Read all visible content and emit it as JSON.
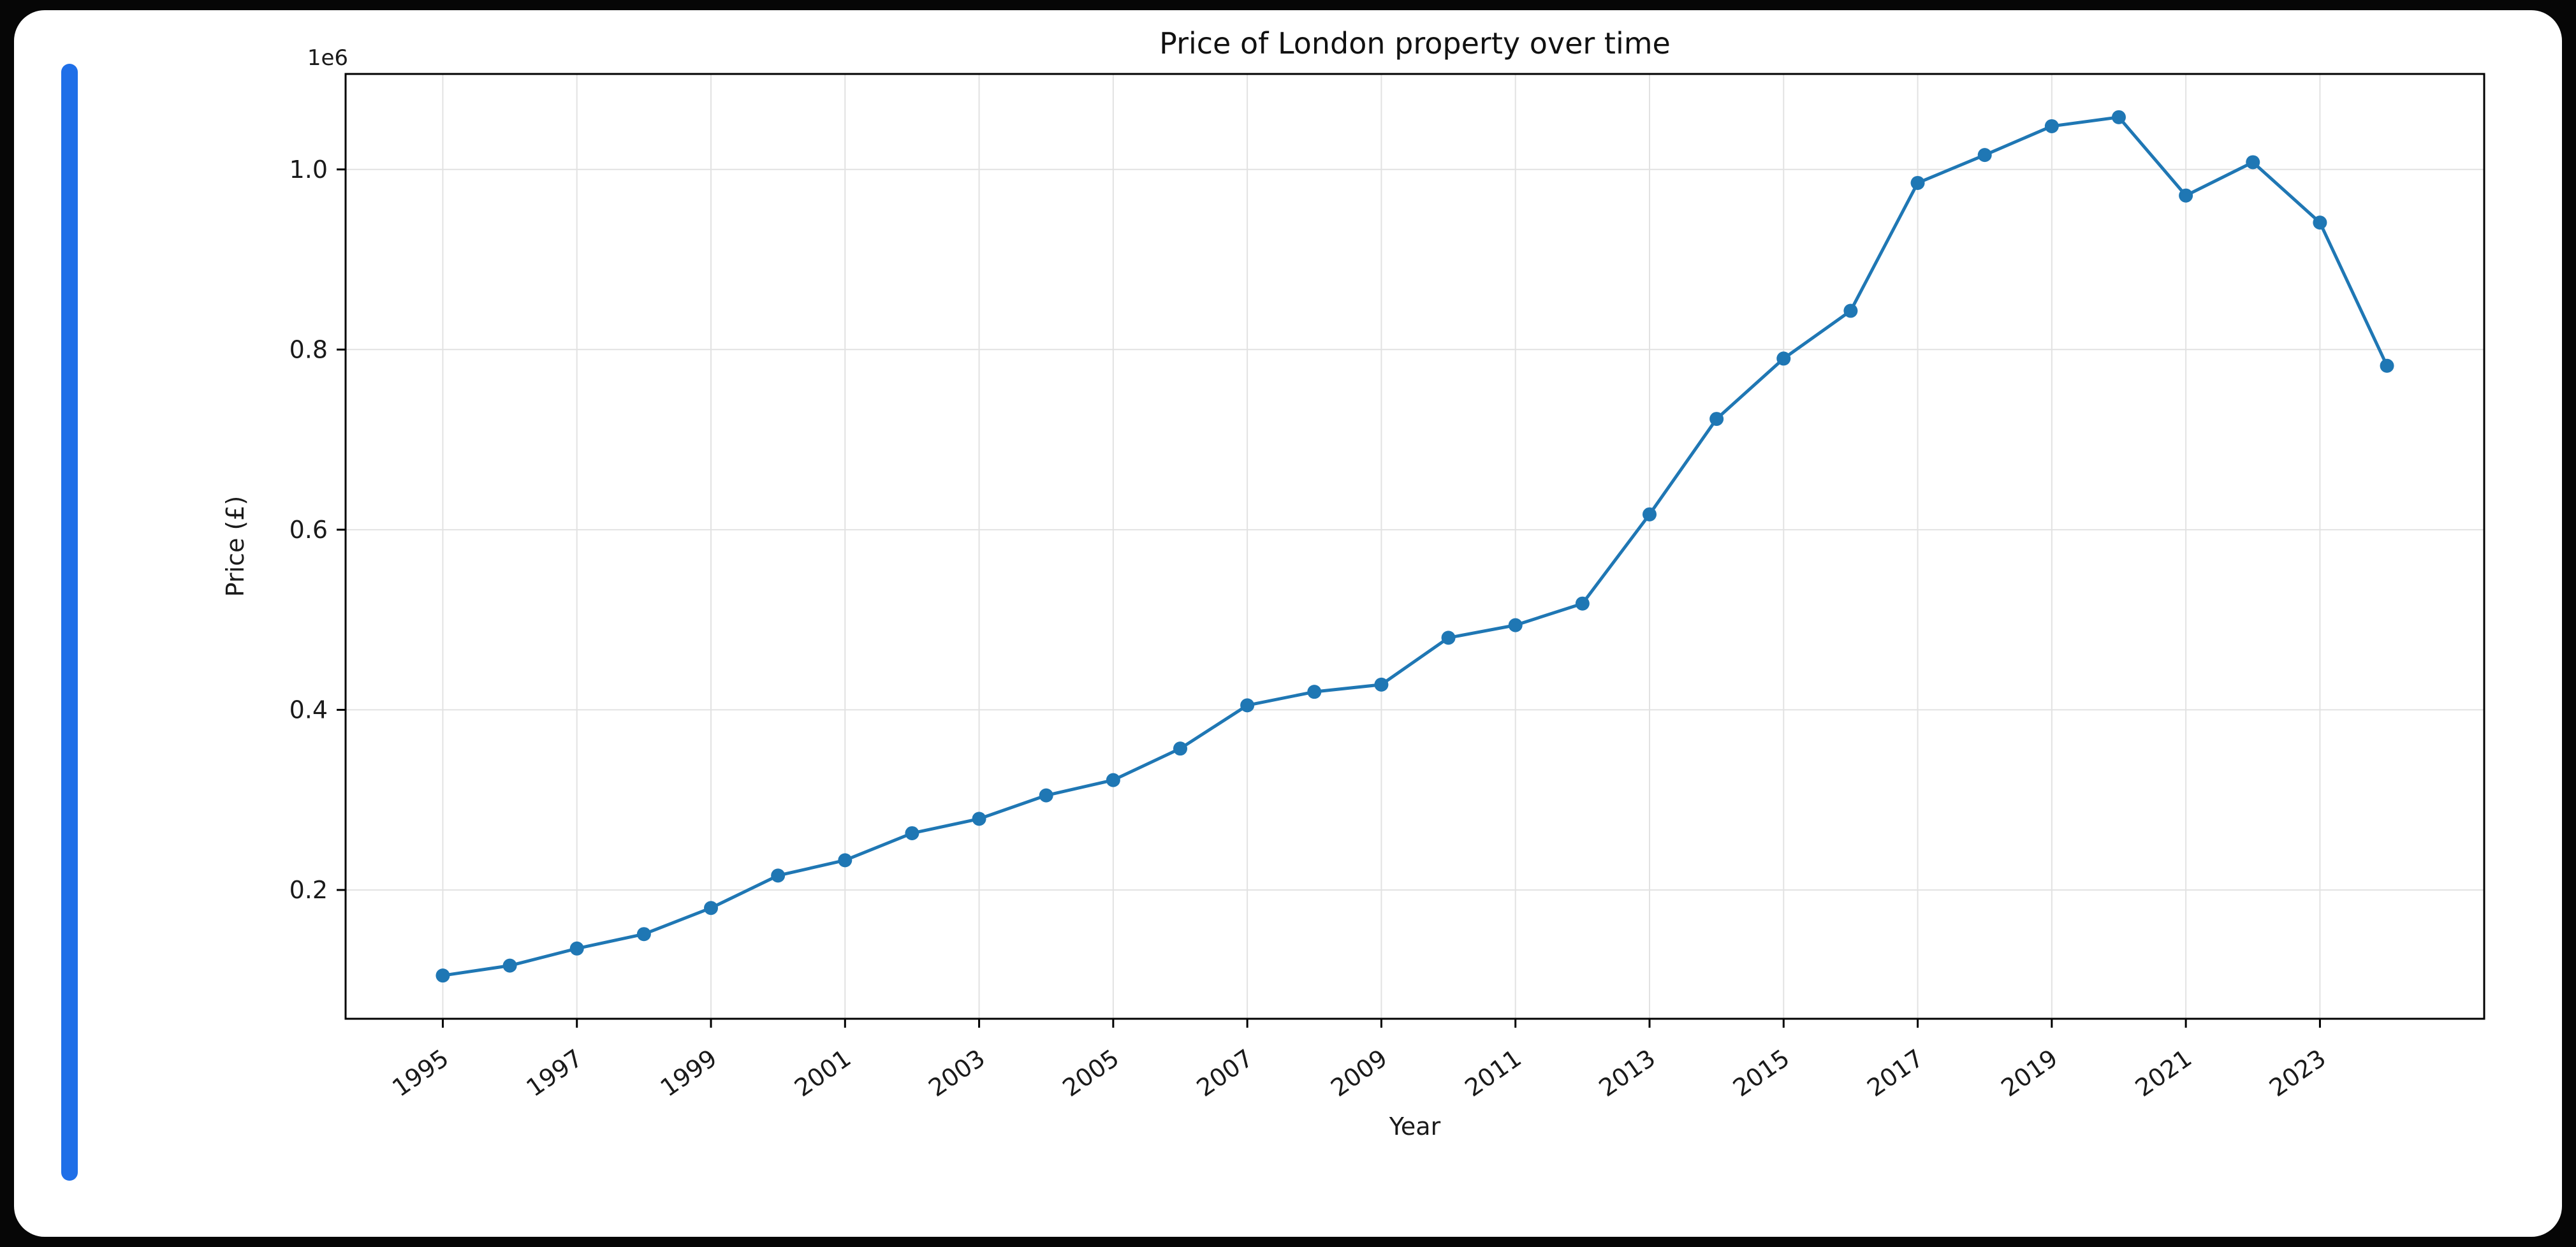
{
  "page": {
    "background_color": "#060606",
    "card_background_color": "#ffffff"
  },
  "accent_bar": {
    "color": "#1f6fe8"
  },
  "chart_data": {
    "type": "line",
    "title": "Price of London property over time",
    "xlabel": "Year",
    "ylabel": "Price (£)",
    "offset_text": "1e6",
    "x": [
      1995,
      1996,
      1997,
      1998,
      1999,
      2000,
      2001,
      2002,
      2003,
      2004,
      2005,
      2006,
      2007,
      2008,
      2009,
      2010,
      2011,
      2012,
      2013,
      2014,
      2015,
      2016,
      2017,
      2018,
      2019,
      2020,
      2021,
      2022,
      2023,
      2024
    ],
    "values": [
      105000,
      116000,
      135000,
      151000,
      180000,
      216000,
      233000,
      263000,
      279000,
      305000,
      322000,
      357000,
      405000,
      420000,
      428000,
      480000,
      494000,
      518000,
      617000,
      723000,
      790000,
      843000,
      985000,
      1016000,
      1048000,
      1058000,
      971000,
      1008000,
      941000,
      782000
    ],
    "x_ticks": [
      1995,
      1997,
      1999,
      2001,
      2003,
      2005,
      2007,
      2009,
      2011,
      2013,
      2015,
      2017,
      2019,
      2021,
      2023
    ],
    "x_tick_labels": [
      "1995",
      "1997",
      "1999",
      "2001",
      "2003",
      "2005",
      "2007",
      "2009",
      "2011",
      "2013",
      "2015",
      "2017",
      "2019",
      "2021",
      "2023"
    ],
    "y_ticks": [
      200000,
      400000,
      600000,
      800000,
      1000000
    ],
    "y_tick_labels": [
      "0.2",
      "0.4",
      "0.6",
      "0.8",
      "1.0"
    ],
    "xlim": [
      1993.55,
      2025.45
    ],
    "ylim": [
      57000,
      1106000
    ],
    "line_color": "#1f77b4",
    "marker": "circle",
    "grid": true,
    "grid_color": "#e2e2e2",
    "tick_label_color": "#1a1a1a",
    "title_color": "#111111",
    "legend_position": "none"
  }
}
